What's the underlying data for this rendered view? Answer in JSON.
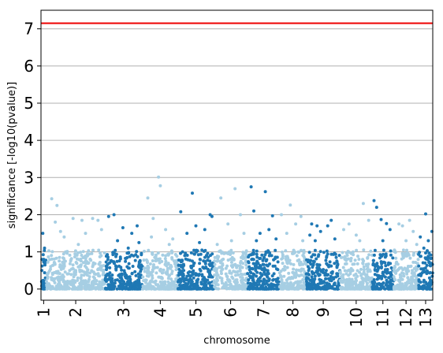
{
  "chart_data": {
    "type": "scatter",
    "subtype": "manhattan",
    "title": "",
    "xlabel": "chromosome",
    "ylabel": "significance [-log10(pvalue)]",
    "ylim": [
      -0.3,
      7.5
    ],
    "yticks": [
      0,
      1,
      2,
      3,
      4,
      5,
      6,
      7
    ],
    "grid": "horizontal",
    "threshold": {
      "value": 7.15,
      "color": "#ee0000"
    },
    "colors": {
      "light": "#a6cee3",
      "dark": "#1f78b4"
    },
    "chromosomes": [
      {
        "label": "1",
        "size": 0.3,
        "color": "dark",
        "points": [
          [
            0.1,
            1.5
          ],
          [
            0.2,
            1.1
          ],
          [
            0.15,
            0.8
          ],
          [
            0.05,
            0.5
          ],
          [
            0.25,
            0.3
          ],
          [
            0.12,
            0.2
          ],
          [
            0.22,
            0.65
          ]
        ]
      },
      {
        "label": "2",
        "size": 3.3,
        "color": "light",
        "points": [
          [
            0.3,
            2.43
          ],
          [
            0.5,
            1.8
          ],
          [
            0.8,
            1.55
          ],
          [
            1.5,
            1.9
          ],
          [
            2.0,
            1.85
          ],
          [
            2.6,
            1.9
          ],
          [
            2.9,
            1.85
          ],
          [
            3.1,
            1.6
          ],
          [
            1.0,
            1.4
          ],
          [
            2.2,
            1.5
          ],
          [
            0.6,
            2.25
          ],
          [
            1.8,
            1.2
          ]
        ]
      },
      {
        "label": "3",
        "size": 2.1,
        "color": "dark",
        "points": [
          [
            0.2,
            1.95
          ],
          [
            0.5,
            2.0
          ],
          [
            1.0,
            1.65
          ],
          [
            1.5,
            1.5
          ],
          [
            1.8,
            1.7
          ],
          [
            0.7,
            1.3
          ],
          [
            1.3,
            1.1
          ],
          [
            1.9,
            1.25
          ]
        ]
      },
      {
        "label": "4",
        "size": 2.0,
        "color": "light",
        "points": [
          [
            0.3,
            2.45
          ],
          [
            0.6,
            1.9
          ],
          [
            0.9,
            3.01
          ],
          [
            1.0,
            2.78
          ],
          [
            1.3,
            1.6
          ],
          [
            1.7,
            1.35
          ],
          [
            0.5,
            1.4
          ],
          [
            1.5,
            1.2
          ]
        ]
      },
      {
        "label": "5",
        "size": 2.0,
        "color": "dark",
        "points": [
          [
            0.15,
            2.08
          ],
          [
            0.8,
            2.58
          ],
          [
            1.8,
            2.0
          ],
          [
            1.0,
            1.7
          ],
          [
            1.5,
            1.6
          ],
          [
            0.5,
            1.5
          ],
          [
            1.2,
            1.25
          ],
          [
            1.9,
            1.95
          ]
        ]
      },
      {
        "label": "6",
        "size": 1.9,
        "color": "light",
        "points": [
          [
            0.4,
            2.45
          ],
          [
            1.2,
            2.7
          ],
          [
            1.5,
            2.0
          ],
          [
            0.8,
            1.75
          ],
          [
            1.7,
            1.5
          ],
          [
            1.0,
            1.3
          ],
          [
            0.2,
            1.2
          ]
        ]
      },
      {
        "label": "7",
        "size": 1.8,
        "color": "dark",
        "points": [
          [
            0.2,
            2.75
          ],
          [
            0.35,
            2.1
          ],
          [
            1.0,
            2.62
          ],
          [
            1.4,
            1.97
          ],
          [
            0.7,
            1.5
          ],
          [
            1.2,
            1.6
          ],
          [
            0.5,
            1.3
          ],
          [
            1.6,
            1.35
          ]
        ]
      },
      {
        "label": "8",
        "size": 1.5,
        "color": "light",
        "points": [
          [
            0.1,
            2.0
          ],
          [
            0.6,
            2.26
          ],
          [
            0.9,
            1.75
          ],
          [
            1.2,
            1.95
          ],
          [
            0.4,
            1.5
          ],
          [
            1.3,
            1.3
          ]
        ]
      },
      {
        "label": "9",
        "size": 1.9,
        "color": "dark",
        "points": [
          [
            0.3,
            1.75
          ],
          [
            0.6,
            1.7
          ],
          [
            0.8,
            1.55
          ],
          [
            1.4,
            1.85
          ],
          [
            1.2,
            1.7
          ],
          [
            0.5,
            1.3
          ],
          [
            1.6,
            1.35
          ],
          [
            0.2,
            1.45
          ]
        ]
      },
      {
        "label": "10",
        "size": 1.8,
        "color": "light",
        "points": [
          [
            0.2,
            1.6
          ],
          [
            0.5,
            1.75
          ],
          [
            0.9,
            1.45
          ],
          [
            1.3,
            2.3
          ],
          [
            1.6,
            1.85
          ],
          [
            1.1,
            1.3
          ]
        ]
      },
      {
        "label": "11",
        "size": 1.2,
        "color": "dark",
        "points": [
          [
            0.1,
            2.38
          ],
          [
            0.25,
            2.2
          ],
          [
            0.5,
            1.87
          ],
          [
            0.8,
            1.76
          ],
          [
            1.0,
            1.6
          ],
          [
            0.6,
            1.3
          ]
        ]
      },
      {
        "label": "12",
        "size": 1.4,
        "color": "light",
        "points": [
          [
            0.3,
            1.75
          ],
          [
            0.5,
            1.7
          ],
          [
            0.9,
            1.85
          ],
          [
            1.1,
            1.55
          ],
          [
            0.7,
            1.3
          ],
          [
            1.3,
            1.2
          ]
        ]
      },
      {
        "label": "13",
        "size": 0.8,
        "color": "dark",
        "points": [
          [
            0.1,
            1.4
          ],
          [
            0.4,
            2.02
          ],
          [
            0.55,
            1.3
          ],
          [
            0.75,
            1.55
          ],
          [
            0.3,
            1.1
          ]
        ]
      }
    ],
    "background_band_max": 1.0
  }
}
